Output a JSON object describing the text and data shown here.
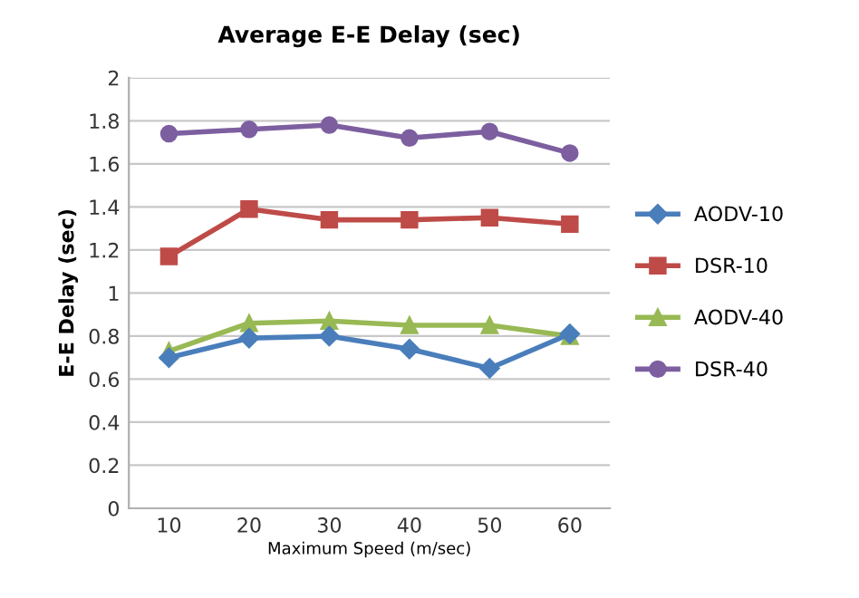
{
  "chart_data": {
    "type": "line",
    "title": "Average E-E Delay (sec)",
    "xlabel": "Maximum Speed (m/sec)",
    "ylabel": "E-E Delay (sec)",
    "categories": [
      "10",
      "20",
      "30",
      "40",
      "50",
      "60"
    ],
    "series": [
      {
        "name": "AODV-10",
        "color": "#4a7ebb",
        "marker": "diamond",
        "values": [
          0.7,
          0.79,
          0.8,
          0.74,
          0.65,
          0.81
        ]
      },
      {
        "name": "DSR-10",
        "color": "#be4b48",
        "marker": "square",
        "values": [
          1.17,
          1.39,
          1.34,
          1.34,
          1.35,
          1.32
        ]
      },
      {
        "name": "AODV-40",
        "color": "#98b954",
        "marker": "triangle",
        "values": [
          0.73,
          0.86,
          0.87,
          0.85,
          0.85,
          0.8
        ]
      },
      {
        "name": "DSR-40",
        "color": "#7d5fa0",
        "marker": "circle",
        "values": [
          1.74,
          1.76,
          1.78,
          1.72,
          1.75,
          1.65
        ]
      }
    ],
    "ylim": [
      0,
      2
    ],
    "yticks": [
      0,
      0.2,
      0.4,
      0.6,
      0.8,
      1,
      1.2,
      1.4,
      1.6,
      1.8,
      2
    ],
    "grid": "y",
    "legend": "right"
  }
}
